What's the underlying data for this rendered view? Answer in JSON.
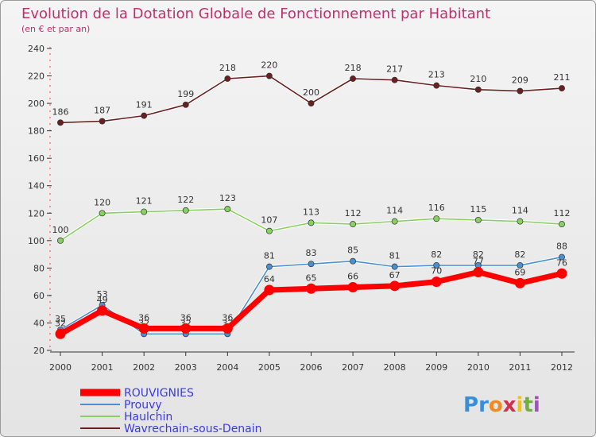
{
  "chart_data": {
    "type": "line",
    "title": "Evolution de la Dotation Globale de Fonctionnement par Habitant",
    "subtitle": "(en € et par an)",
    "xlabel": "",
    "ylabel": "",
    "categories": [
      "2000",
      "2001",
      "2002",
      "2003",
      "2004",
      "2005",
      "2006",
      "2007",
      "2008",
      "2009",
      "2010",
      "2011",
      "2012"
    ],
    "yticks": [
      20,
      40,
      60,
      80,
      100,
      120,
      140,
      160,
      180,
      200,
      220,
      240
    ],
    "ylim": [
      20,
      240
    ],
    "grid": false,
    "legend_position": "bottom-left",
    "series": [
      {
        "name": "ROUVIGNIES",
        "color": "#ff0000",
        "values": [
          32,
          49,
          36,
          36,
          36,
          64,
          65,
          66,
          67,
          70,
          77,
          69,
          76
        ]
      },
      {
        "name": "Prouvy",
        "color": "#4a90d0",
        "values": [
          35,
          53,
          32,
          32,
          32,
          81,
          83,
          85,
          81,
          82,
          82,
          82,
          88
        ]
      },
      {
        "name": "Haulchin",
        "color": "#88d060",
        "values": [
          100,
          120,
          121,
          122,
          123,
          107,
          113,
          112,
          114,
          116,
          115,
          114,
          112
        ]
      },
      {
        "name": "Wavrechain-sous-Denain",
        "color": "#6b2020",
        "values": [
          186,
          187,
          191,
          199,
          218,
          220,
          200,
          218,
          217,
          213,
          210,
          209,
          211
        ]
      }
    ]
  },
  "branding": {
    "logo_text": "Proxiti",
    "logo_letters": [
      {
        "ch": "P",
        "color": "#3a8ed8"
      },
      {
        "ch": "r",
        "color": "#3a8ed8"
      },
      {
        "ch": "o",
        "color": "#f08a20"
      },
      {
        "ch": "x",
        "color": "#d03050"
      },
      {
        "ch": "i",
        "color": "#f0c020"
      },
      {
        "ch": "t",
        "color": "#70b040"
      },
      {
        "ch": "i",
        "color": "#a050c0"
      }
    ]
  }
}
